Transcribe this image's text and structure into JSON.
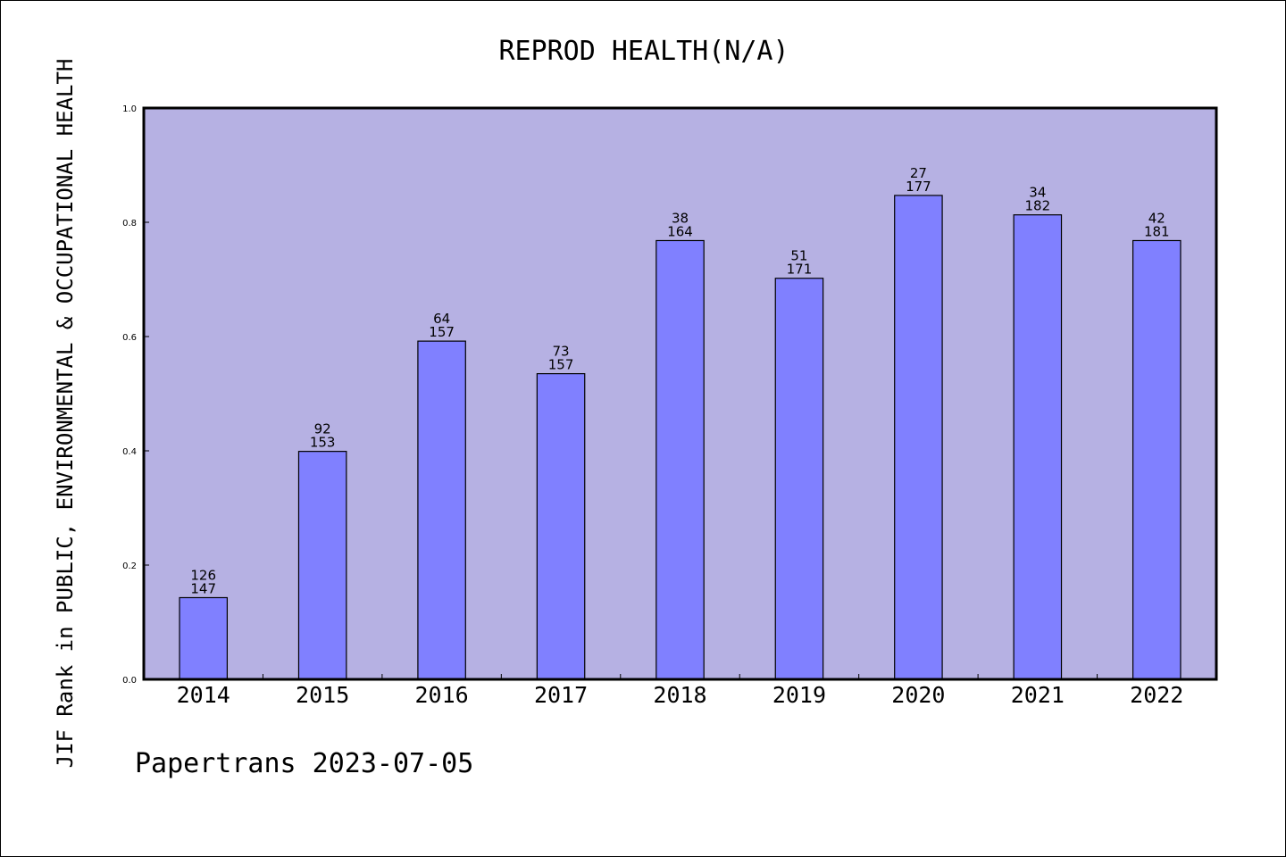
{
  "chart_data": {
    "type": "bar",
    "title": "REPROD HEALTH(N/A)",
    "ylabel": "JIF Rank in PUBLIC, ENVIRONMENTAL & OCCUPATIONAL HEALTH",
    "xlabel": "",
    "ylim": [
      0.0,
      1.0
    ],
    "yticks": [
      "0.0",
      "0.2",
      "0.4",
      "0.6",
      "0.8",
      "1.0"
    ],
    "categories": [
      "2014",
      "2015",
      "2016",
      "2017",
      "2018",
      "2019",
      "2020",
      "2021",
      "2022"
    ],
    "values": [
      0.143,
      0.399,
      0.592,
      0.535,
      0.768,
      0.702,
      0.847,
      0.813,
      0.768
    ],
    "rank": [
      "126",
      "92",
      "64",
      "73",
      "38",
      "51",
      "27",
      "34",
      "42"
    ],
    "total": [
      "147",
      "153",
      "157",
      "157",
      "164",
      "171",
      "177",
      "182",
      "181"
    ],
    "grid": false,
    "colors": {
      "plot_background": "#b6b1e3",
      "bar_fill": "#8080ff",
      "bar_edge": "#000000"
    }
  },
  "footer": {
    "text": "Papertrans 2023-07-05"
  }
}
